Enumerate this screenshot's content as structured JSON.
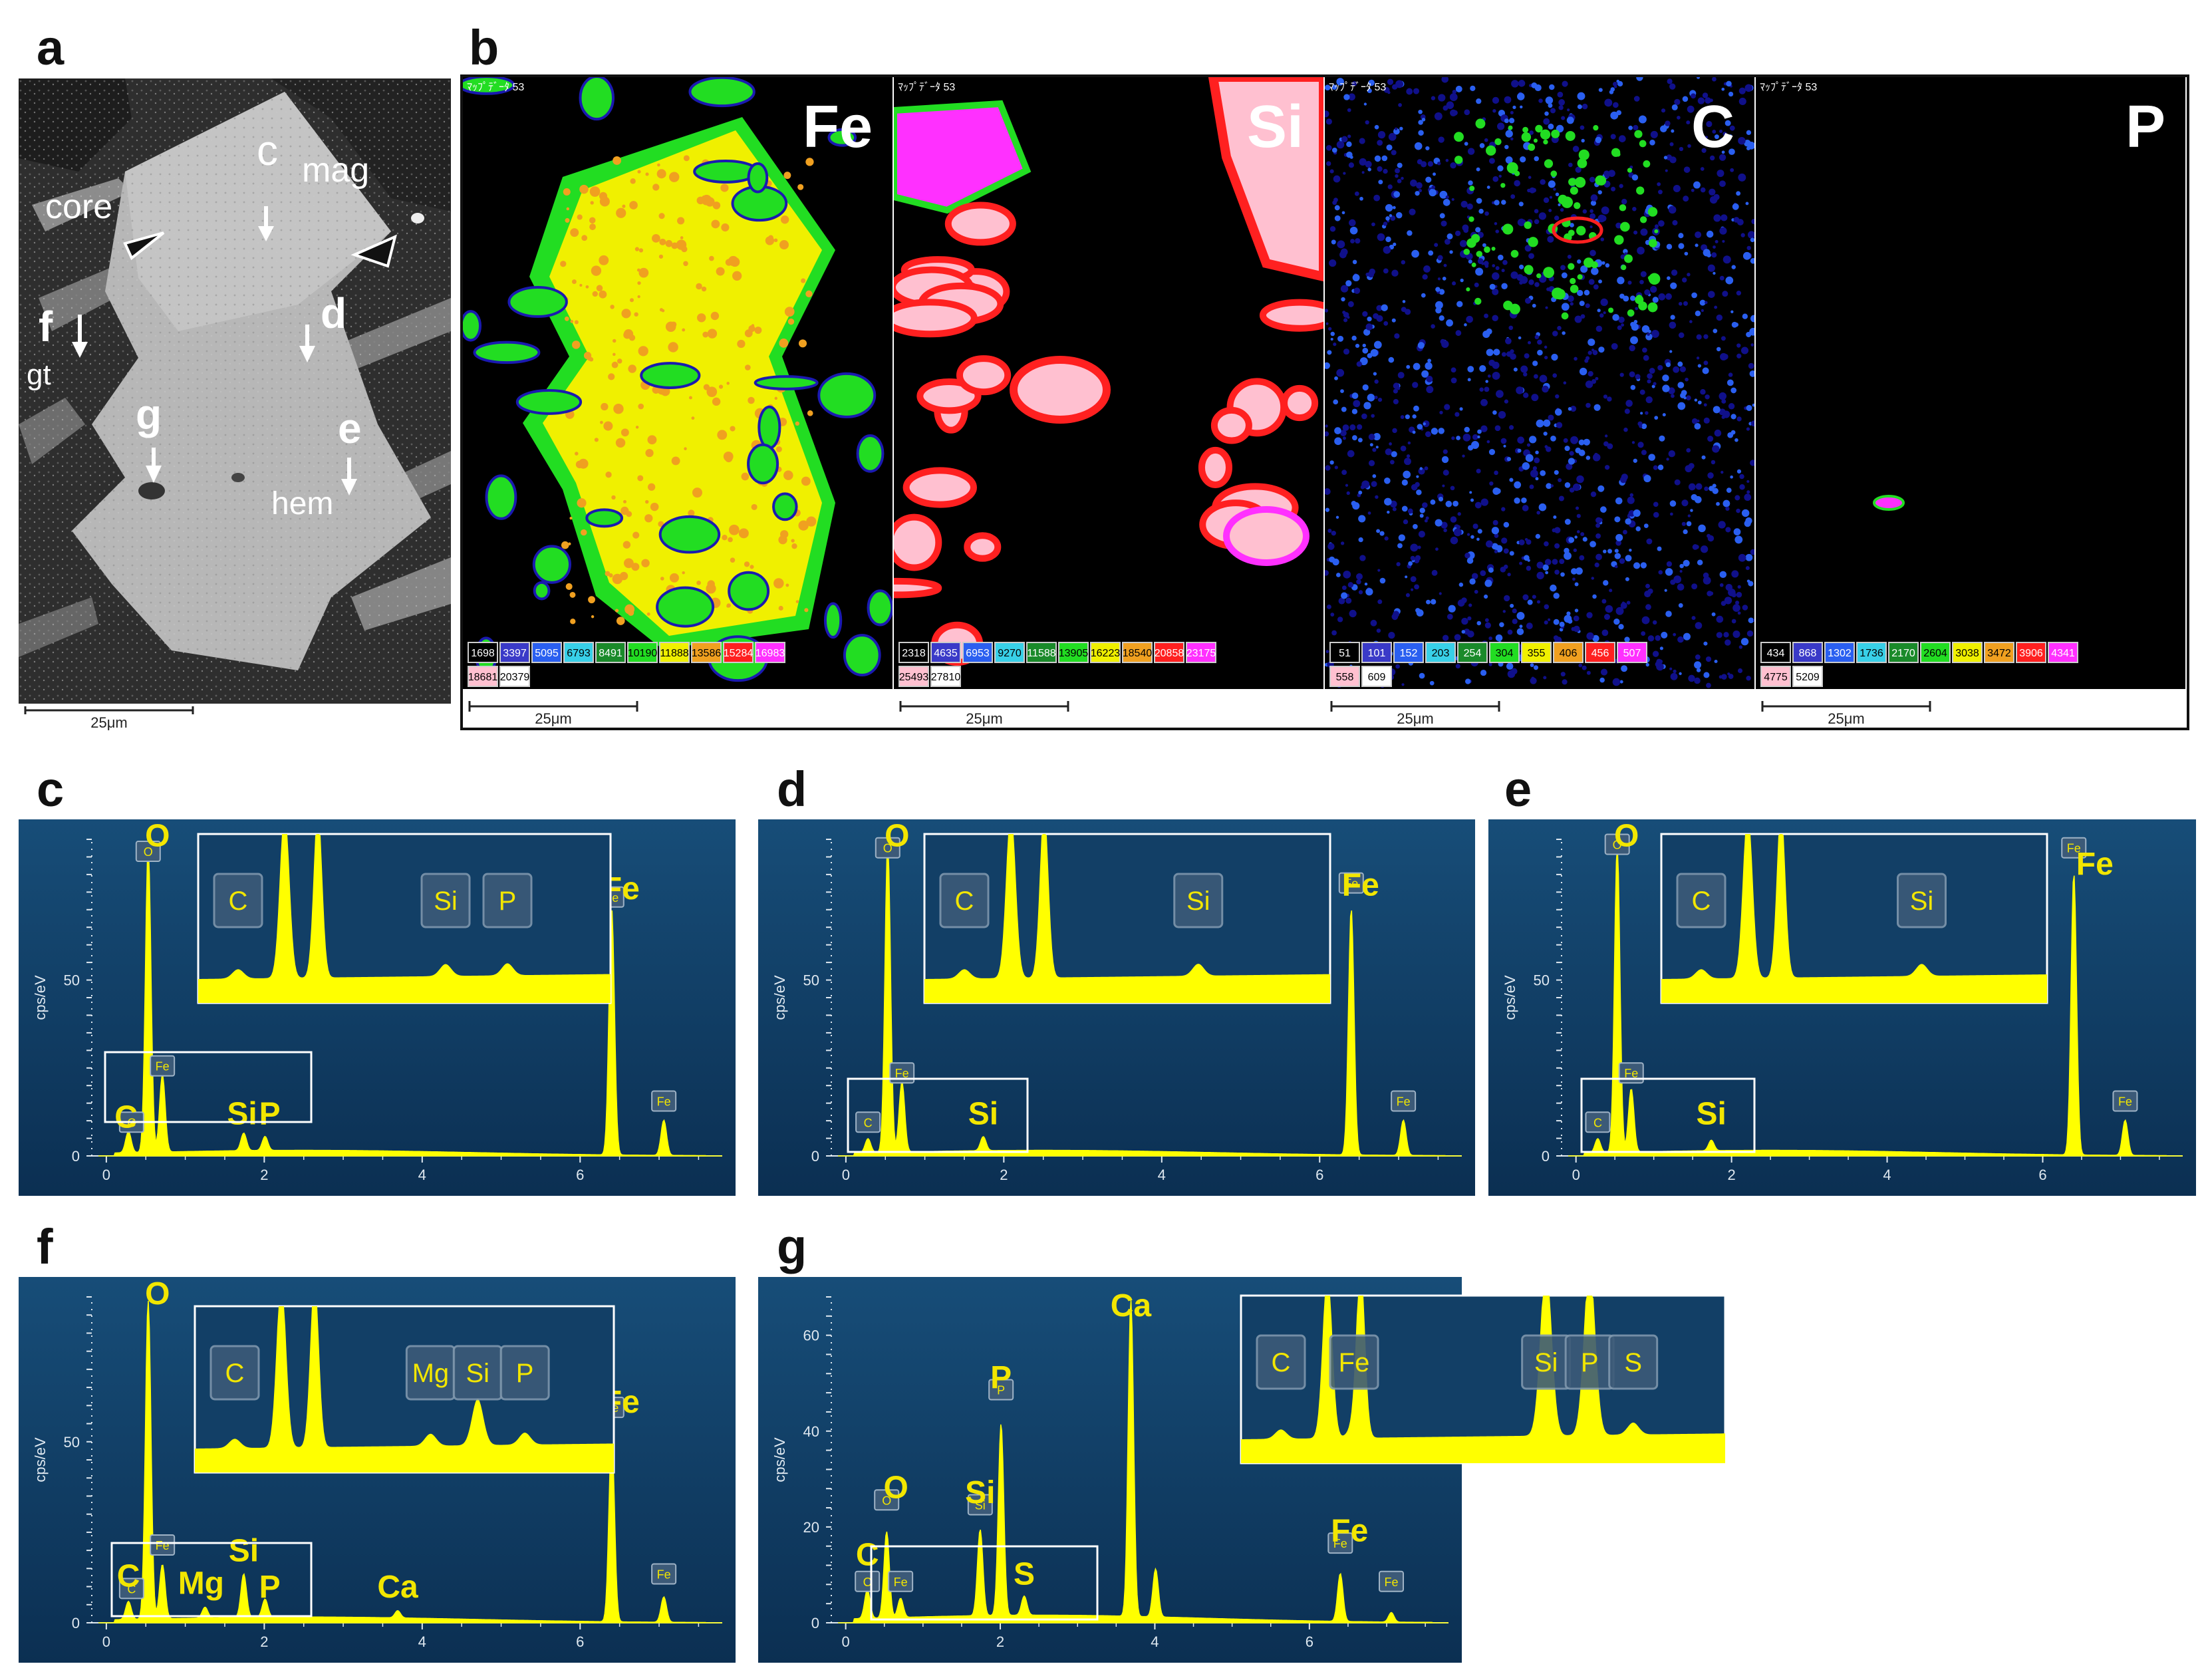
{
  "panels": {
    "a": {
      "label": "a",
      "annotations": [
        "core",
        "c",
        "mag",
        "f",
        "gt",
        "d",
        "g",
        "e",
        "hem"
      ],
      "scale_bar": "25μm"
    },
    "b": {
      "label": "b",
      "map_header": "ﾏｯﾌﾟﾃﾞｰﾀ 53",
      "maps": [
        {
          "element": "Fe",
          "legend": [
            "1698",
            "3397",
            "5095",
            "6793",
            "8491",
            "10190",
            "11888",
            "13586",
            "15284",
            "16983",
            "18681",
            "20379"
          ],
          "legend_colors": [
            "#000000",
            "#3a3ac8",
            "#2a5ff0",
            "#38d0e8",
            "#1a8a2a",
            "#22dd22",
            "#f0f000",
            "#f0a020",
            "#ff2020",
            "#ff30ff",
            "#ffc0d0",
            "#ffffff"
          ],
          "scale": "25μm"
        },
        {
          "element": "Si",
          "legend": [
            "2318",
            "4635",
            "6953",
            "9270",
            "11588",
            "13905",
            "16223",
            "18540",
            "20858",
            "23175",
            "25493",
            "27810"
          ],
          "legend_colors": [
            "#000000",
            "#3a3ac8",
            "#2a5ff0",
            "#38d0e8",
            "#1a8a2a",
            "#22dd22",
            "#f0f000",
            "#f0a020",
            "#ff2020",
            "#ff30ff",
            "#ffc0d0",
            "#ffffff"
          ],
          "scale": "25μm"
        },
        {
          "element": "C",
          "legend": [
            "51",
            "101",
            "152",
            "203",
            "254",
            "304",
            "355",
            "406",
            "456",
            "507",
            "558",
            "609"
          ],
          "legend_colors": [
            "#000000",
            "#3a3ac8",
            "#2a5ff0",
            "#38d0e8",
            "#1a8a2a",
            "#22dd22",
            "#f0f000",
            "#f0a020",
            "#ff2020",
            "#ff30ff",
            "#ffc0d0",
            "#ffffff"
          ],
          "scale": "25μm"
        },
        {
          "element": "P",
          "legend": [
            "434",
            "868",
            "1302",
            "1736",
            "2170",
            "2604",
            "3038",
            "3472",
            "3906",
            "4341",
            "4775",
            "5209"
          ],
          "legend_colors": [
            "#000000",
            "#3a3ac8",
            "#2a5ff0",
            "#38d0e8",
            "#1a8a2a",
            "#22dd22",
            "#f0f000",
            "#f0a020",
            "#ff2020",
            "#ff30ff",
            "#ffc0d0",
            "#ffffff"
          ],
          "scale": "25μm"
        }
      ]
    }
  },
  "colors": {
    "plot_bg": "#0f3a60",
    "spectrum": "#ffff00",
    "label": "#f2e600"
  },
  "chart_data": [
    {
      "id": "c",
      "type": "area",
      "ylabel": "cps/eV",
      "xticks": [
        0,
        2,
        4,
        6
      ],
      "yticks": [
        0,
        50
      ],
      "ylim": [
        0,
        90
      ],
      "xlim": [
        -0.1,
        7.8
      ],
      "peaks": [
        [
          0.28,
          6
        ],
        [
          0.53,
          87
        ],
        [
          0.71,
          22
        ],
        [
          1.74,
          5
        ],
        [
          2.01,
          4
        ],
        [
          6.4,
          70
        ],
        [
          7.06,
          10
        ]
      ],
      "labels": [
        {
          "t": "O",
          "x": 0.53,
          "y": 88
        },
        {
          "t": "Fe",
          "x": 6.4,
          "y": 73
        },
        {
          "t": "C",
          "x": 0.25,
          "y": 8
        },
        {
          "t": "Si",
          "x": 1.72,
          "y": 9
        },
        {
          "t": "P",
          "x": 2.07,
          "y": 9
        }
      ],
      "tags": [
        {
          "t": "O",
          "x": 0.53,
          "y": 83
        },
        {
          "t": "Fe",
          "x": 6.4,
          "y": 70
        },
        {
          "t": "Fe",
          "x": 0.71,
          "y": 22
        },
        {
          "t": "Fe",
          "x": 7.06,
          "y": 12
        },
        {
          "t": "C",
          "x": 0.32,
          "y": 6
        }
      ],
      "insets": [
        {
          "peaks": [
            "C",
            "Si",
            "P"
          ]
        }
      ]
    },
    {
      "id": "d",
      "type": "area",
      "ylabel": "cps/eV",
      "xticks": [
        0,
        2,
        4,
        6
      ],
      "yticks": [
        0,
        50
      ],
      "ylim": [
        0,
        90
      ],
      "xlim": [
        -0.1,
        7.8
      ],
      "peaks": [
        [
          0.28,
          4
        ],
        [
          0.53,
          88
        ],
        [
          0.71,
          20
        ],
        [
          1.74,
          4
        ],
        [
          6.4,
          70
        ],
        [
          7.06,
          10
        ]
      ],
      "labels": [
        {
          "t": "O",
          "x": 0.53,
          "y": 88
        },
        {
          "t": "Fe",
          "x": 6.4,
          "y": 74
        },
        {
          "t": "Si",
          "x": 1.74,
          "y": 9
        }
      ],
      "tags": [
        {
          "t": "O",
          "x": 0.53,
          "y": 84
        },
        {
          "t": "Fe",
          "x": 6.4,
          "y": 74
        },
        {
          "t": "Fe",
          "x": 0.71,
          "y": 20
        },
        {
          "t": "Fe",
          "x": 7.06,
          "y": 12
        },
        {
          "t": "C",
          "x": 0.28,
          "y": 6
        }
      ],
      "insets": [
        {
          "peaks": [
            "C",
            "Si"
          ]
        }
      ]
    },
    {
      "id": "e",
      "type": "area",
      "ylabel": "cps/eV",
      "xticks": [
        0,
        2,
        4,
        6
      ],
      "yticks": [
        0,
        50
      ],
      "ylim": [
        0,
        90
      ],
      "xlim": [
        -0.1,
        7.8
      ],
      "peaks": [
        [
          0.28,
          4
        ],
        [
          0.53,
          87
        ],
        [
          0.71,
          18
        ],
        [
          1.74,
          3
        ],
        [
          6.4,
          80
        ],
        [
          7.06,
          10
        ]
      ],
      "labels": [
        {
          "t": "O",
          "x": 0.53,
          "y": 88
        },
        {
          "t": "Fe",
          "x": 6.55,
          "y": 80
        },
        {
          "t": "Si",
          "x": 1.74,
          "y": 9
        }
      ],
      "tags": [
        {
          "t": "O",
          "x": 0.53,
          "y": 85
        },
        {
          "t": "Fe",
          "x": 6.4,
          "y": 84
        },
        {
          "t": "Fe",
          "x": 0.71,
          "y": 20
        },
        {
          "t": "Fe",
          "x": 7.06,
          "y": 12
        },
        {
          "t": "C",
          "x": 0.28,
          "y": 6
        }
      ],
      "insets": [
        {
          "peaks": [
            "C",
            "Si"
          ]
        }
      ]
    },
    {
      "id": "f",
      "type": "area",
      "ylabel": "cps/eV",
      "xticks": [
        0,
        2,
        4,
        6
      ],
      "yticks": [
        0,
        50
      ],
      "ylim": [
        0,
        90
      ],
      "xlim": [
        -0.1,
        7.8
      ],
      "peaks": [
        [
          0.28,
          5
        ],
        [
          0.53,
          88
        ],
        [
          0.71,
          15
        ],
        [
          1.25,
          3
        ],
        [
          1.74,
          12
        ],
        [
          2.01,
          5
        ],
        [
          3.69,
          2
        ],
        [
          6.4,
          52
        ],
        [
          7.06,
          7
        ]
      ],
      "labels": [
        {
          "t": "O",
          "x": 0.53,
          "y": 88
        },
        {
          "t": "Fe",
          "x": 6.4,
          "y": 58
        },
        {
          "t": "C",
          "x": 0.28,
          "y": 10
        },
        {
          "t": "Mg",
          "x": 1.2,
          "y": 8
        },
        {
          "t": "Si",
          "x": 1.74,
          "y": 17
        },
        {
          "t": "P",
          "x": 2.07,
          "y": 7
        },
        {
          "t": "Ca",
          "x": 3.69,
          "y": 7
        }
      ],
      "tags": [
        {
          "t": "Fe",
          "x": 6.4,
          "y": 56
        },
        {
          "t": "Fe",
          "x": 0.71,
          "y": 18
        },
        {
          "t": "Fe",
          "x": 7.06,
          "y": 10
        },
        {
          "t": "C",
          "x": 0.32,
          "y": 6
        }
      ],
      "insets": [
        {
          "peaks": [
            "C",
            "Mg",
            "Si",
            "P"
          ]
        }
      ]
    },
    {
      "id": "g",
      "type": "area",
      "ylabel": "cps/eV",
      "xticks": [
        0,
        2,
        4,
        6
      ],
      "yticks": [
        0,
        20,
        40,
        60
      ],
      "ylim": [
        0,
        68
      ],
      "xlim": [
        -0.1,
        7.8
      ],
      "peaks": [
        [
          0.28,
          6
        ],
        [
          0.53,
          18
        ],
        [
          0.71,
          4
        ],
        [
          1.74,
          18
        ],
        [
          2.01,
          40
        ],
        [
          2.31,
          4
        ],
        [
          3.69,
          66
        ],
        [
          4.01,
          10
        ],
        [
          6.4,
          10
        ],
        [
          7.06,
          2
        ]
      ],
      "labels": [
        {
          "t": "Ca",
          "x": 3.69,
          "y": 64
        },
        {
          "t": "P",
          "x": 2.01,
          "y": 49
        },
        {
          "t": "O",
          "x": 0.53,
          "y": 26
        },
        {
          "t": "Si",
          "x": 1.74,
          "y": 25
        },
        {
          "t": "C",
          "x": 0.28,
          "y": 12
        },
        {
          "t": "S",
          "x": 2.31,
          "y": 8
        },
        {
          "t": "Fe",
          "x": 6.4,
          "y": 17
        }
      ],
      "tags": [
        {
          "t": "P",
          "x": 2.01,
          "y": 46
        },
        {
          "t": "Si",
          "x": 1.74,
          "y": 22
        },
        {
          "t": "O",
          "x": 0.53,
          "y": 23
        },
        {
          "t": "Fe",
          "x": 6.4,
          "y": 14
        },
        {
          "t": "Fe",
          "x": 7.06,
          "y": 6
        },
        {
          "t": "Fe",
          "x": 0.71,
          "y": 6
        },
        {
          "t": "C",
          "x": 0.28,
          "y": 6
        }
      ],
      "insets": [
        {
          "peaks": [
            "C",
            "Fe",
            "Si",
            "P",
            "S"
          ]
        }
      ]
    }
  ]
}
